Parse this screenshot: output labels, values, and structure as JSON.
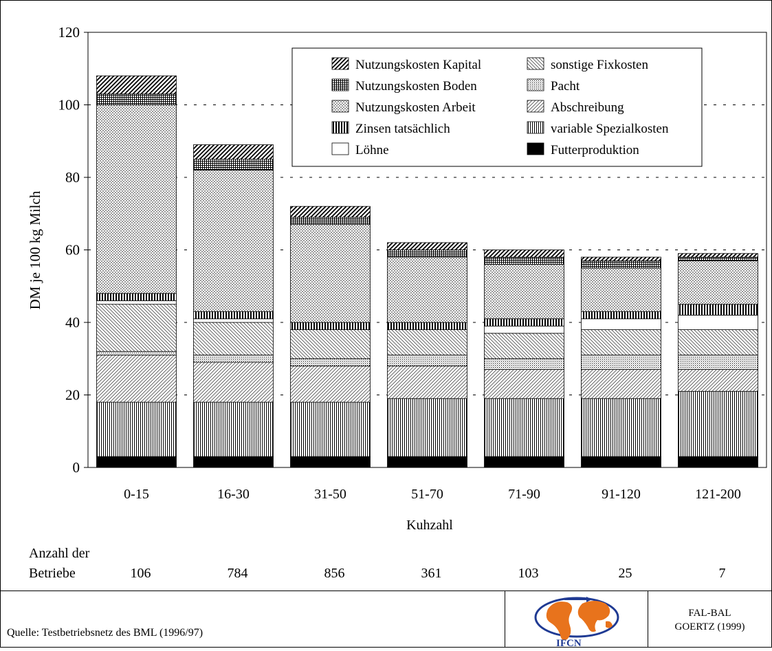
{
  "chart_data": {
    "type": "bar",
    "stacked": true,
    "ylabel": "DM je 100 kg Milch",
    "xlabel": "Kuhzahl",
    "ylim": [
      0,
      120
    ],
    "yticks": [
      0,
      20,
      40,
      60,
      80,
      100,
      120
    ],
    "grid": "dashed-horizontal",
    "legend_position": "top-right",
    "categories": [
      "0-15",
      "16-30",
      "31-50",
      "51-70",
      "71-90",
      "91-120",
      "121-200"
    ],
    "series": [
      {
        "name": "Futterproduktion",
        "pattern": "solid",
        "values": [
          3,
          3,
          3,
          3,
          3,
          3,
          3
        ]
      },
      {
        "name": "variable Spezialkosten",
        "pattern": "vertical",
        "values": [
          15,
          15,
          15,
          16,
          16,
          16,
          18
        ]
      },
      {
        "name": "Abschreibung",
        "pattern": "diag-fine",
        "values": [
          13,
          11,
          10,
          9,
          8,
          8,
          6
        ]
      },
      {
        "name": "Pacht",
        "pattern": "dots-fine",
        "values": [
          1,
          2,
          2,
          3,
          3,
          4,
          4
        ]
      },
      {
        "name": "sonstige Fixkosten",
        "pattern": "back-diag",
        "values": [
          13,
          9,
          8,
          7,
          7,
          7,
          7
        ]
      },
      {
        "name": "Löhne",
        "pattern": "white",
        "values": [
          1,
          1,
          0,
          0,
          2,
          3,
          4
        ]
      },
      {
        "name": "Zinsen tatsächlich",
        "pattern": "vert-bold",
        "values": [
          2,
          2,
          2,
          2,
          2,
          2,
          3
        ]
      },
      {
        "name": "Nutzungskosten Arbeit",
        "pattern": "crosshatch",
        "values": [
          52,
          39,
          27,
          18,
          15,
          12,
          12
        ]
      },
      {
        "name": "Nutzungskosten Boden",
        "pattern": "grid",
        "values": [
          3,
          3,
          2,
          2,
          2,
          2,
          1
        ]
      },
      {
        "name": "Nutzungskosten Kapital",
        "pattern": "diag-bold",
        "values": [
          5,
          4,
          3,
          2,
          2,
          1,
          1
        ]
      }
    ],
    "legend": [
      [
        "Nutzungskosten Kapital",
        "sonstige Fixkosten"
      ],
      [
        "Nutzungskosten Boden",
        "Pacht"
      ],
      [
        "Nutzungskosten Arbeit",
        "Abschreibung"
      ],
      [
        "Zinsen tatsächlich",
        "variable Spezialkosten"
      ],
      [
        "Löhne",
        "Futterproduktion"
      ]
    ]
  },
  "betriebe": {
    "label_line1": "Anzahl der",
    "label_line2": "Betriebe",
    "counts": [
      "106",
      "784",
      "856",
      "361",
      "103",
      "25",
      "7"
    ]
  },
  "footer": {
    "source": "Quelle: Testbetriebsnetz des BML (1996/97)",
    "logo_text": "IFCN",
    "credit_line1": "FAL-BAL",
    "credit_line2": "GOERTZ (1999)"
  }
}
